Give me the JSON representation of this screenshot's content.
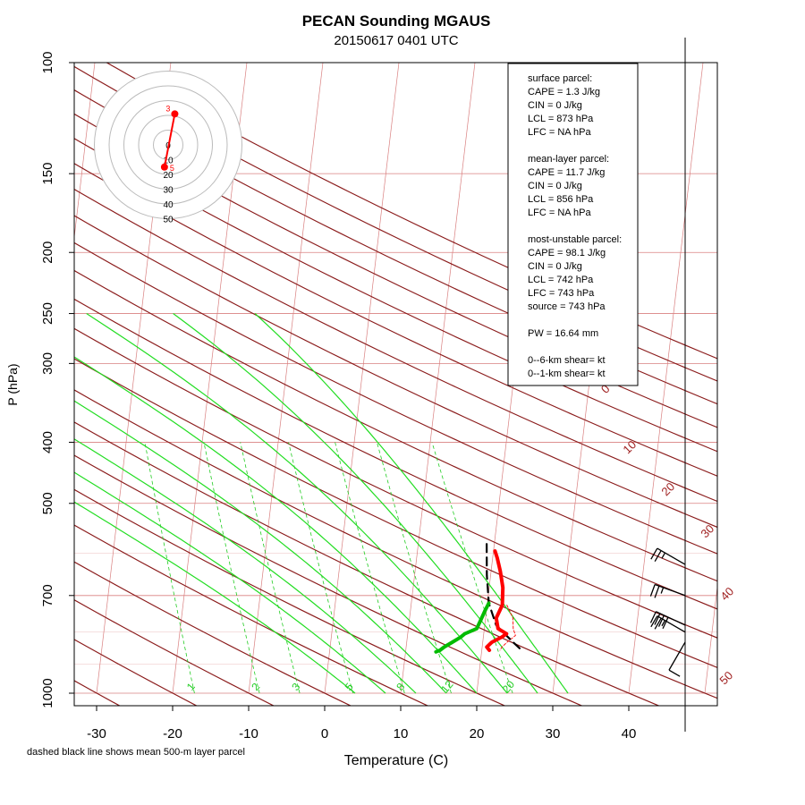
{
  "chart_data": {
    "type": "skew-t",
    "title": "PECAN Sounding MGAUS",
    "subtitle": "20150617 0401 UTC",
    "xlabel": "Temperature (C)",
    "ylabel": "P (hPa)",
    "footnote": "dashed black line shows mean 500-m layer parcel",
    "x_ticks": [
      -30,
      -20,
      -10,
      0,
      10,
      20,
      30,
      40
    ],
    "p_ticks": [
      100,
      150,
      200,
      250,
      300,
      400,
      500,
      700,
      1000
    ],
    "p_range": [
      100,
      1000
    ],
    "t_range": [
      -33,
      50
    ],
    "dry_adiabat_labels": [
      "0",
      "10",
      "20",
      "30",
      "40",
      "50"
    ],
    "mixing_ratio_labels": [
      "1",
      "2",
      "3",
      "5",
      "8",
      "12",
      "20"
    ],
    "colors": {
      "dry_adiabat": "#8b1c1c",
      "isotherm": "#d98080",
      "moist_adiabat": "#22dd22",
      "mixing_ratio": "#22cc22",
      "temperature": "#ff0000",
      "dewpoint": "#00bb00",
      "parcel": "#000000",
      "hodograph": "#ff0000",
      "label_red": "#a02020"
    },
    "temperature": {
      "p": [
        595,
        610,
        640,
        680,
        725,
        760,
        790,
        805,
        815,
        830,
        845,
        855
      ],
      "t": [
        20.2,
        20.6,
        21.2,
        21.8,
        22.0,
        21.4,
        21.8,
        23.0,
        22.4,
        21.2,
        20.6,
        21.0
      ]
    },
    "dewpoint": {
      "p": [
        720,
        740,
        765,
        790,
        805,
        815,
        830,
        845,
        855,
        860
      ],
      "t": [
        20.2,
        19.8,
        19.4,
        19.0,
        17.5,
        17.0,
        16.0,
        15.0,
        14.5,
        14.0
      ]
    },
    "parcel_path": {
      "p": [
        580,
        650,
        720,
        780,
        810,
        830,
        850
      ],
      "t": [
        19.0,
        19.5,
        20.2,
        21.5,
        23.0,
        24.0,
        25.0
      ]
    },
    "parcel_thin": {
      "p": [
        725,
        760,
        790,
        810,
        830,
        845,
        855
      ],
      "t": [
        22.6,
        23.6,
        23.8,
        24.2,
        23.2,
        22.6,
        22.4
      ]
    },
    "winds": [
      {
        "p": 625,
        "dir": 300,
        "spd": 25
      },
      {
        "p": 700,
        "dir": 290,
        "spd": 25
      },
      {
        "p": 780,
        "dir": 295,
        "spd": 40
      },
      {
        "p": 800,
        "dir": 300,
        "spd": 25
      },
      {
        "p": 830,
        "dir": 210,
        "spd": 10
      }
    ],
    "hodograph": {
      "rings": [
        "10",
        "20",
        "30",
        "40",
        "50"
      ],
      "center_label": "0",
      "segment": [
        {
          "u": -2.5,
          "v": -15
        },
        {
          "u": 4.5,
          "v": 21
        }
      ],
      "point_labels": [
        "3",
        "5"
      ]
    },
    "stats": {
      "surface": {
        "header": "surface parcel:",
        "cape": "CAPE = 1.3 J/kg",
        "cin": "CIN = 0 J/kg",
        "lcl": "LCL = 873 hPa",
        "lfc": "LFC = NA hPa"
      },
      "mean_layer": {
        "header": "mean-layer parcel:",
        "cape": "CAPE = 11.7 J/kg",
        "cin": "CIN = 0 J/kg",
        "lcl": "LCL = 856 hPa",
        "lfc": "LFC = NA hPa"
      },
      "most_unstable": {
        "header": "most-unstable parcel:",
        "cape": "CAPE = 98.1 J/kg",
        "cin": "CIN = 0 J/kg",
        "lcl": "LCL = 742 hPa",
        "lfc": "LFC = 743 hPa",
        "source": "source = 743 hPa"
      },
      "pw": "PW =  16.64 mm",
      "shear_6km": "0--6-km shear=  kt",
      "shear_1km": "0--1-km shear=  kt"
    }
  }
}
